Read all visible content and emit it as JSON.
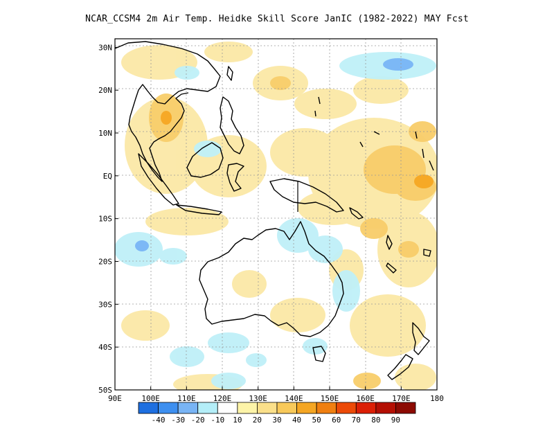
{
  "title": "NCAR_CCSM4  2m Air Temp. Heidke Skill Score JanIC (1982-2022) MAY Fcst",
  "map": {
    "lon_range": [
      90,
      180
    ],
    "lat_range": [
      -50,
      32
    ],
    "grid": "dotted",
    "lat_labels": [
      "30N",
      "20N",
      "10N",
      "EQ",
      "10S",
      "20S",
      "30S",
      "40S",
      "50S"
    ],
    "lat_values": [
      30,
      20,
      10,
      0,
      -10,
      -20,
      -30,
      -40,
      -50
    ],
    "lon_labels": [
      "90E",
      "100E",
      "110E",
      "120E",
      "130E",
      "140E",
      "150E",
      "160E",
      "170E",
      "180"
    ],
    "lon_values": [
      90,
      100,
      110,
      120,
      130,
      140,
      150,
      160,
      170,
      180
    ]
  },
  "colorbar": {
    "labels": [
      "-40",
      "-30",
      "-20",
      "-10",
      "10",
      "20",
      "30",
      "40",
      "50",
      "60",
      "70",
      "80",
      "90"
    ],
    "colors": [
      "#1e6fe0",
      "#3d8ff0",
      "#78b4f5",
      "#b4eef8",
      "#ffffff",
      "#fdf4a8",
      "#fbe08a",
      "#f8c95a",
      "#f5a623",
      "#f07f10",
      "#ec4a07",
      "#dc1f05",
      "#b40f03",
      "#8c0a02"
    ]
  }
}
